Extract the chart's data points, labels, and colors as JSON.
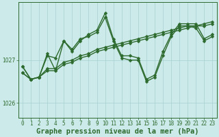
{
  "background_color": "#cceaea",
  "grid_color": "#a8d0d0",
  "line_color": "#2d6a2d",
  "marker_color": "#2d6a2d",
  "title": "Graphe pression niveau de la mer (hPa)",
  "ylim": [
    1025.65,
    1028.35
  ],
  "xlim": [
    -0.5,
    23.5
  ],
  "yticks": [
    1026,
    1027
  ],
  "xticks": [
    0,
    1,
    2,
    3,
    4,
    5,
    6,
    7,
    8,
    9,
    10,
    11,
    12,
    13,
    14,
    15,
    16,
    17,
    18,
    19,
    20,
    21,
    22,
    23
  ],
  "series": [
    [
      1026.85,
      1026.55,
      1026.6,
      1027.15,
      1026.75,
      1027.45,
      1027.2,
      1027.45,
      1027.6,
      1027.7,
      1028.1,
      1027.5,
      1027.1,
      1027.1,
      1027.05,
      1026.55,
      1026.65,
      1027.2,
      1027.6,
      1027.85,
      1027.85,
      1027.85,
      1027.5,
      1027.6
    ],
    [
      1026.85,
      1026.55,
      1026.6,
      1027.1,
      1027.05,
      1027.45,
      1027.25,
      1027.5,
      1027.55,
      1027.65,
      1028.0,
      1027.45,
      1027.05,
      1027.0,
      1027.0,
      1026.5,
      1026.6,
      1027.1,
      1027.55,
      1027.8,
      1027.8,
      1027.75,
      1027.45,
      1027.55
    ],
    [
      1026.7,
      1026.55,
      1026.6,
      1026.75,
      1026.75,
      1026.9,
      1026.95,
      1027.05,
      1027.1,
      1027.2,
      1027.25,
      1027.3,
      1027.35,
      1027.4,
      1027.45,
      1027.5,
      1027.55,
      1027.6,
      1027.65,
      1027.7,
      1027.75,
      1027.8,
      1027.8,
      1027.85
    ],
    [
      1026.7,
      1026.55,
      1026.6,
      1026.8,
      1026.8,
      1026.95,
      1027.0,
      1027.1,
      1027.15,
      1027.25,
      1027.3,
      1027.35,
      1027.4,
      1027.45,
      1027.5,
      1027.55,
      1027.6,
      1027.65,
      1027.7,
      1027.75,
      1027.8,
      1027.8,
      1027.85,
      1027.9
    ]
  ],
  "marker_size": 2.5,
  "line_width": 1.0,
  "title_fontsize": 7.5,
  "tick_fontsize": 5.5,
  "title_color": "#2d6a2d",
  "tick_color": "#2d6a2d",
  "axis_color": "#2d6a2d",
  "spine_color": "#2d6a2d"
}
